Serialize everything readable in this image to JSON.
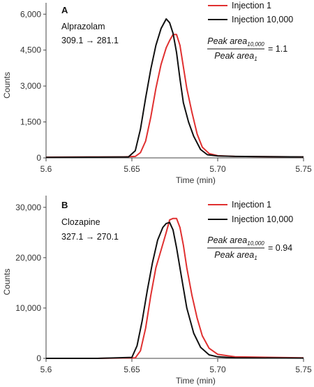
{
  "chart_data": [
    {
      "type": "line",
      "panel_label": "A",
      "compound": "Alprazolam",
      "transition": "309.1 → 281.1",
      "xlabel": "Time (min)",
      "ylabel": "Counts",
      "xlim": [
        5.6,
        5.75
      ],
      "ylim": [
        0,
        6300
      ],
      "xticks": [
        5.6,
        5.65,
        5.7,
        5.75
      ],
      "xtick_labels": [
        "5.6",
        "5.65",
        "5.70",
        "5.75"
      ],
      "yticks": [
        0,
        1500,
        3000,
        4500,
        6000
      ],
      "ytick_labels": [
        "0",
        "1,500",
        "3,000",
        "4,500",
        "6,000"
      ],
      "ratio": {
        "numerator": "Peak area",
        "numerator_sub": "10,000",
        "denominator": "Peak area",
        "denominator_sub": "1",
        "value": "= 1.1"
      },
      "legend_position": "top-right",
      "series": [
        {
          "name": "Injection 1",
          "color": "#e03030",
          "x": [
            5.6,
            5.63,
            5.645,
            5.652,
            5.655,
            5.658,
            5.661,
            5.664,
            5.667,
            5.67,
            5.672,
            5.674,
            5.676,
            5.678,
            5.68,
            5.682,
            5.685,
            5.688,
            5.691,
            5.695,
            5.7,
            5.71,
            5.75
          ],
          "y": [
            30,
            40,
            40,
            60,
            220,
            700,
            1700,
            2900,
            3900,
            4600,
            4900,
            5150,
            5150,
            4700,
            3800,
            2900,
            1900,
            1000,
            450,
            180,
            90,
            60,
            40
          ]
        },
        {
          "name": "Injection 10,000",
          "color": "#111111",
          "x": [
            5.6,
            5.63,
            5.648,
            5.652,
            5.655,
            5.658,
            5.661,
            5.664,
            5.667,
            5.67,
            5.672,
            5.674,
            5.676,
            5.678,
            5.68,
            5.683,
            5.686,
            5.69,
            5.694,
            5.7,
            5.71,
            5.75
          ],
          "y": [
            20,
            30,
            40,
            300,
            1200,
            2500,
            3700,
            4700,
            5400,
            5800,
            5640,
            5200,
            4400,
            3300,
            2300,
            1500,
            900,
            350,
            130,
            80,
            60,
            40
          ]
        }
      ]
    },
    {
      "type": "line",
      "panel_label": "B",
      "compound": "Clozapine",
      "transition": "327.1 → 270.1",
      "xlabel": "Time (min)",
      "ylabel": "Counts",
      "xlim": [
        5.6,
        5.75
      ],
      "ylim": [
        0,
        31500
      ],
      "xticks": [
        5.6,
        5.65,
        5.7,
        5.75
      ],
      "xtick_labels": [
        "5.6",
        "5.65",
        "5.70",
        "5.75"
      ],
      "yticks": [
        0,
        10000,
        20000,
        30000
      ],
      "ytick_labels": [
        "0",
        "10,000",
        "20,000",
        "30,000"
      ],
      "ratio": {
        "numerator": "Peak area",
        "numerator_sub": "10,000",
        "denominator": "Peak area",
        "denominator_sub": "1",
        "value": "= 0.94"
      },
      "legend_position": "top-right",
      "series": [
        {
          "name": "Injection 1",
          "color": "#e03030",
          "x": [
            5.6,
            5.63,
            5.652,
            5.655,
            5.658,
            5.661,
            5.664,
            5.667,
            5.67,
            5.672,
            5.674,
            5.676,
            5.678,
            5.68,
            5.682,
            5.685,
            5.688,
            5.691,
            5.695,
            5.7,
            5.71,
            5.75
          ],
          "y": [
            0,
            0,
            100,
            1500,
            6000,
            12500,
            18000,
            21500,
            25000,
            27500,
            27800,
            27800,
            26000,
            22500,
            18000,
            12500,
            8000,
            4500,
            2000,
            800,
            300,
            100
          ]
        },
        {
          "name": "Injection 10,000",
          "color": "#111111",
          "x": [
            5.6,
            5.63,
            5.65,
            5.653,
            5.656,
            5.659,
            5.662,
            5.665,
            5.668,
            5.67,
            5.672,
            5.674,
            5.676,
            5.679,
            5.682,
            5.686,
            5.69,
            5.695,
            5.7,
            5.71,
            5.75
          ],
          "y": [
            0,
            0,
            200,
            2500,
            7500,
            13500,
            19000,
            23500,
            26000,
            26800,
            27000,
            25500,
            22000,
            16000,
            10000,
            5000,
            2200,
            700,
            300,
            100,
            50
          ]
        }
      ]
    }
  ]
}
